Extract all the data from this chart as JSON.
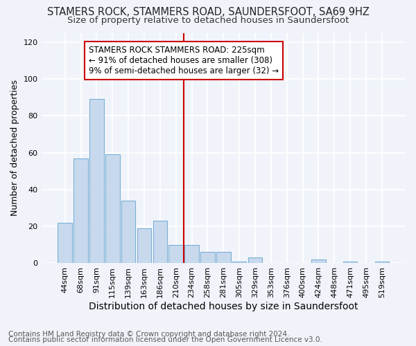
{
  "title": "STAMERS ROCK, STAMMERS ROAD, SAUNDERSFOOT, SA69 9HZ",
  "subtitle": "Size of property relative to detached houses in Saundersfoot",
  "xlabel": "Distribution of detached houses by size in Saundersfoot",
  "ylabel": "Number of detached properties",
  "footnote1": "Contains HM Land Registry data © Crown copyright and database right 2024.",
  "footnote2": "Contains public sector information licensed under the Open Government Licence v3.0.",
  "bar_labels": [
    "44sqm",
    "68sqm",
    "91sqm",
    "115sqm",
    "139sqm",
    "163sqm",
    "186sqm",
    "210sqm",
    "234sqm",
    "258sqm",
    "281sqm",
    "305sqm",
    "329sqm",
    "353sqm",
    "376sqm",
    "400sqm",
    "424sqm",
    "448sqm",
    "471sqm",
    "495sqm",
    "519sqm"
  ],
  "bar_values": [
    22,
    57,
    89,
    59,
    34,
    19,
    23,
    10,
    10,
    6,
    6,
    1,
    3,
    0,
    0,
    0,
    2,
    0,
    1,
    0,
    1
  ],
  "bar_color": "#c8d9ee",
  "bar_edge_color": "#7aafd4",
  "vline_color": "#cc0000",
  "annotation_text": "STAMERS ROCK STAMMERS ROAD: 225sqm\n← 91% of detached houses are smaller (308)\n9% of semi-detached houses are larger (32) →",
  "annotation_box_color": "#ffffff",
  "annotation_box_edge": "#cc0000",
  "ylim": [
    0,
    125
  ],
  "yticks": [
    0,
    20,
    40,
    60,
    80,
    100,
    120
  ],
  "background_color": "#f0f4fa",
  "grid_color": "#ffffff",
  "title_fontsize": 10.5,
  "subtitle_fontsize": 9.5,
  "ylabel_fontsize": 9,
  "xlabel_fontsize": 10,
  "tick_fontsize": 8,
  "annot_fontsize": 8.5,
  "footnote_fontsize": 7.5
}
